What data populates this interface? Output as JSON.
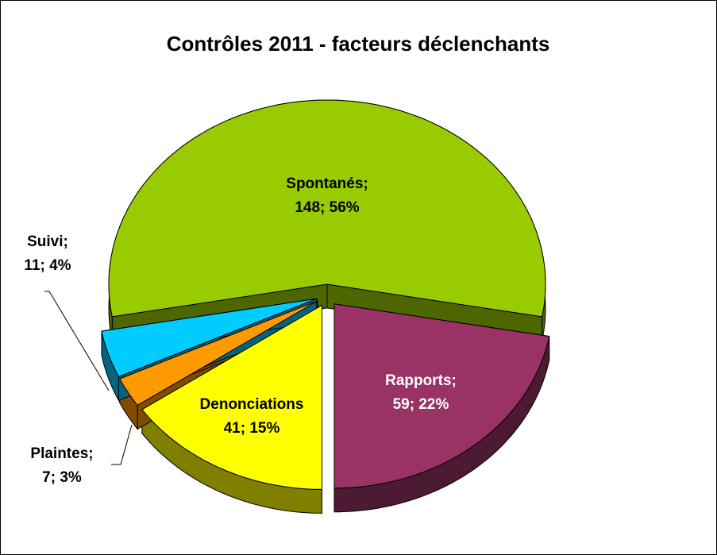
{
  "chart_data": {
    "type": "pie3d",
    "title": "Contrôles 2011 - facteurs déclenchants",
    "categories": [
      "Spontanés;",
      "Rapports;",
      "Denonciations",
      "Plaintes;",
      "Suivi;"
    ],
    "values": [
      148,
      59,
      41,
      7,
      11
    ],
    "value_labels": [
      "148; 56%",
      "59; 22%",
      "41; 15%",
      "7; 3%",
      "11; 4%"
    ],
    "colors": [
      "#99cc00",
      "#993366",
      "#ffff00",
      "#ff9900",
      "#00ccff"
    ]
  }
}
